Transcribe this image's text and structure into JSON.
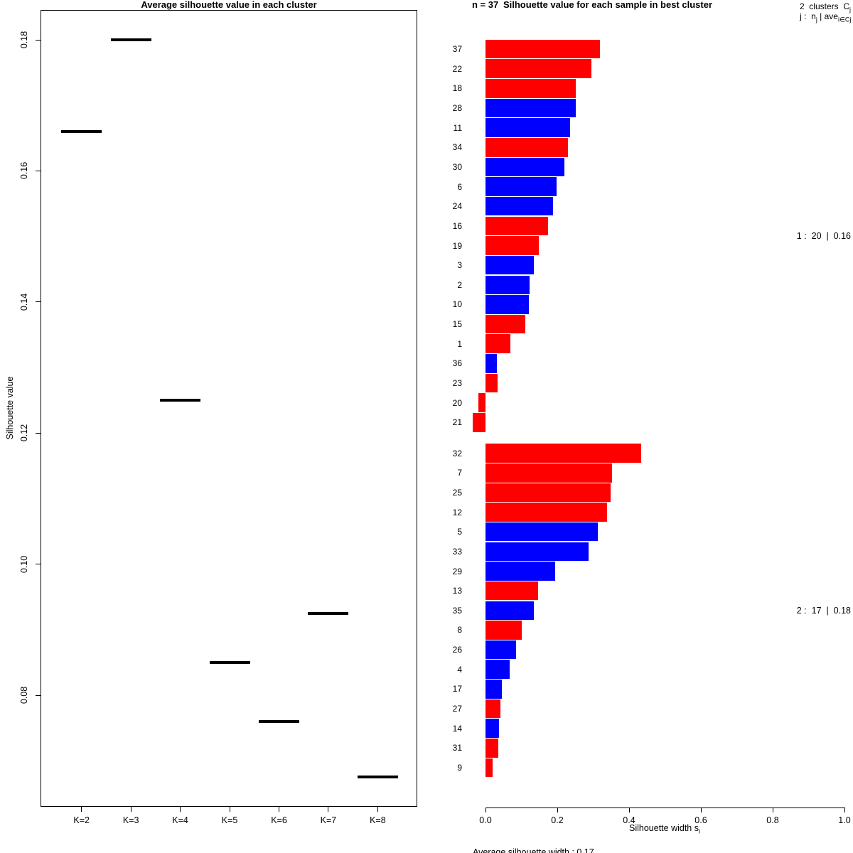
{
  "palette": {
    "red": "#FF0000",
    "blue": "#0000FF",
    "axis": "#000000",
    "marker": "#000000"
  },
  "chart_data": [
    {
      "type": "scatter",
      "marker": "horizontal-dash",
      "title": "Average silhouette value in each cluster",
      "xlabel": "",
      "ylabel": "Silhouette value",
      "categories": [
        "K=2",
        "K=3",
        "K=4",
        "K=5",
        "K=6",
        "K=7",
        "K=8"
      ],
      "values": [
        0.166,
        0.18,
        0.125,
        0.085,
        0.076,
        0.0925,
        0.0675
      ],
      "y_ticks": [
        {
          "label": "0.18",
          "value": 0.18
        },
        {
          "label": "0.16",
          "value": 0.16
        },
        {
          "label": "0.14",
          "value": 0.14
        },
        {
          "label": "0.12",
          "value": 0.12
        },
        {
          "label": "0.10",
          "value": 0.1
        },
        {
          "label": "0.08",
          "value": 0.08
        }
      ],
      "ylim": [
        0.063,
        0.185
      ],
      "grid": false
    },
    {
      "type": "bar",
      "orientation": "horizontal",
      "title": "Silhouette value for each sample in best cluster",
      "sample_count_label": "n = 37",
      "header": {
        "line1_text": "2  clusters  C",
        "line1_sub": "j",
        "line2_parts": {
          "a": "j :  n",
          "a_sub": "j",
          "b": " | ave",
          "b_sub": "i∈Cj",
          "c": "  s",
          "c_sub": "i"
        }
      },
      "xlabel": {
        "text": "Silhouette width s",
        "sub": "i"
      },
      "x_ticks": [
        {
          "label": "0.0",
          "value": 0.0
        },
        {
          "label": "0.2",
          "value": 0.2
        },
        {
          "label": "0.4",
          "value": 0.4
        },
        {
          "label": "0.6",
          "value": 0.6
        },
        {
          "label": "0.8",
          "value": 0.8
        },
        {
          "label": "1.0",
          "value": 1.0
        }
      ],
      "xlim": [
        0,
        1
      ],
      "grid": false,
      "footer": "Average silhouette width : 0.17",
      "clusters": [
        {
          "annotation": "1 :  20  |  0.16",
          "bars": [
            {
              "id": "37",
              "value": 0.318,
              "color": "red"
            },
            {
              "id": "22",
              "value": 0.295,
              "color": "red"
            },
            {
              "id": "18",
              "value": 0.251,
              "color": "red"
            },
            {
              "id": "28",
              "value": 0.252,
              "color": "blue"
            },
            {
              "id": "11",
              "value": 0.236,
              "color": "blue"
            },
            {
              "id": "34",
              "value": 0.23,
              "color": "red"
            },
            {
              "id": "30",
              "value": 0.22,
              "color": "blue"
            },
            {
              "id": "6",
              "value": 0.198,
              "color": "blue"
            },
            {
              "id": "24",
              "value": 0.188,
              "color": "blue"
            },
            {
              "id": "16",
              "value": 0.175,
              "color": "red"
            },
            {
              "id": "19",
              "value": 0.149,
              "color": "red"
            },
            {
              "id": "3",
              "value": 0.135,
              "color": "blue"
            },
            {
              "id": "2",
              "value": 0.122,
              "color": "blue"
            },
            {
              "id": "10",
              "value": 0.12,
              "color": "blue"
            },
            {
              "id": "15",
              "value": 0.11,
              "color": "red"
            },
            {
              "id": "1",
              "value": 0.069,
              "color": "red"
            },
            {
              "id": "36",
              "value": 0.032,
              "color": "blue"
            },
            {
              "id": "23",
              "value": 0.033,
              "color": "red"
            },
            {
              "id": "20",
              "value": -0.02,
              "color": "red"
            },
            {
              "id": "21",
              "value": -0.036,
              "color": "red"
            }
          ]
        },
        {
          "annotation": "2 :  17  |  0.18",
          "bars": [
            {
              "id": "32",
              "value": 0.433,
              "color": "red"
            },
            {
              "id": "7",
              "value": 0.352,
              "color": "red"
            },
            {
              "id": "25",
              "value": 0.349,
              "color": "red"
            },
            {
              "id": "12",
              "value": 0.339,
              "color": "red"
            },
            {
              "id": "5",
              "value": 0.313,
              "color": "blue"
            },
            {
              "id": "33",
              "value": 0.287,
              "color": "blue"
            },
            {
              "id": "29",
              "value": 0.195,
              "color": "blue"
            },
            {
              "id": "13",
              "value": 0.147,
              "color": "red"
            },
            {
              "id": "35",
              "value": 0.135,
              "color": "blue"
            },
            {
              "id": "8",
              "value": 0.1,
              "color": "red"
            },
            {
              "id": "26",
              "value": 0.085,
              "color": "blue"
            },
            {
              "id": "4",
              "value": 0.067,
              "color": "blue"
            },
            {
              "id": "17",
              "value": 0.045,
              "color": "blue"
            },
            {
              "id": "27",
              "value": 0.041,
              "color": "red"
            },
            {
              "id": "14",
              "value": 0.037,
              "color": "blue"
            },
            {
              "id": "31",
              "value": 0.035,
              "color": "red"
            },
            {
              "id": "9",
              "value": 0.019,
              "color": "red"
            }
          ]
        }
      ]
    }
  ]
}
